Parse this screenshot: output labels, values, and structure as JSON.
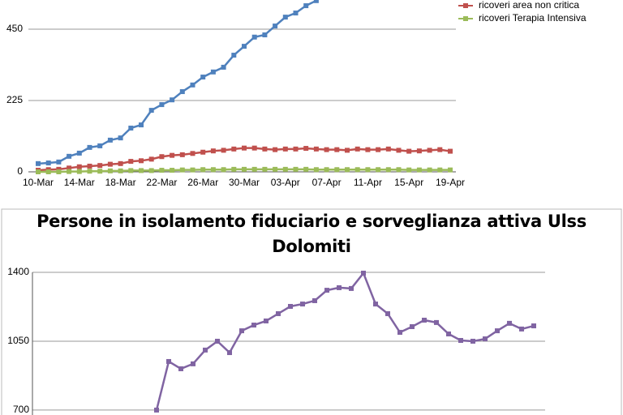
{
  "chart_data": [
    {
      "type": "line",
      "categories": [
        "10-Mar",
        null,
        null,
        null,
        "14-Mar",
        null,
        null,
        null,
        "18-Mar",
        null,
        null,
        null,
        "22-Mar",
        null,
        null,
        null,
        "26-Mar",
        null,
        null,
        null,
        "30-Mar",
        null,
        null,
        null,
        "03-Apr",
        null,
        null,
        null,
        "07-Apr",
        null,
        null,
        null,
        "11-Apr",
        null,
        null,
        null,
        "15-Apr",
        null,
        null,
        null,
        "19-Apr"
      ],
      "series": [
        {
          "color": "#4f81bd",
          "values": [
            26,
            28,
            31,
            49,
            59,
            77,
            82,
            100,
            107,
            138,
            148,
            194,
            212,
            227,
            253,
            274,
            299,
            315,
            330,
            368,
            396,
            425,
            432,
            460,
            488,
            501,
            524,
            540,
            null,
            null,
            null,
            null,
            null,
            null,
            null,
            null,
            null,
            null,
            null,
            null,
            null
          ]
        },
        {
          "name": "ricoveri area non critica",
          "color": "#c0504d",
          "values": [
            5,
            7,
            8,
            12,
            16,
            18,
            20,
            24,
            26,
            33,
            35,
            40,
            48,
            52,
            54,
            58,
            62,
            66,
            68,
            72,
            75,
            75,
            72,
            70,
            72,
            72,
            74,
            72,
            70,
            70,
            68,
            72,
            70,
            70,
            72,
            68,
            65,
            66,
            68,
            70,
            65
          ]
        },
        {
          "name": "ricoveri Terapia Intensiva",
          "color": "#9bbb59",
          "values": [
            0,
            0,
            0,
            1,
            1,
            2,
            2,
            3,
            3,
            4,
            4,
            4,
            5,
            5,
            6,
            6,
            7,
            7,
            7,
            8,
            8,
            8,
            8,
            8,
            8,
            8,
            8,
            7,
            7,
            7,
            7,
            7,
            7,
            7,
            7,
            7,
            6,
            6,
            6,
            6,
            6
          ]
        }
      ],
      "ylim": [
        0,
        542
      ],
      "yticks": [
        0,
        225,
        450
      ],
      "grid": true,
      "legend": "top-right"
    },
    {
      "type": "line",
      "title": "Persone in isolamento fiduciario e sorveglianza attiva Ulss Dolomiti",
      "series": [
        {
          "color": "#8064a2",
          "values": [
            null,
            null,
            null,
            null,
            null,
            null,
            null,
            null,
            null,
            null,
            700,
            947,
            910,
            935,
            1005,
            1050,
            992,
            1103,
            1132,
            1153,
            1190,
            1227,
            1239,
            1256,
            1309,
            1322,
            1318,
            1396,
            1239,
            1190,
            1095,
            1124,
            1157,
            1145,
            1087,
            1054,
            1050,
            1062,
            1103,
            1141,
            1112,
            1128
          ]
        }
      ],
      "ylim": [
        675,
        1400
      ],
      "yticks": [
        700,
        1050,
        1400
      ],
      "grid": true
    }
  ]
}
